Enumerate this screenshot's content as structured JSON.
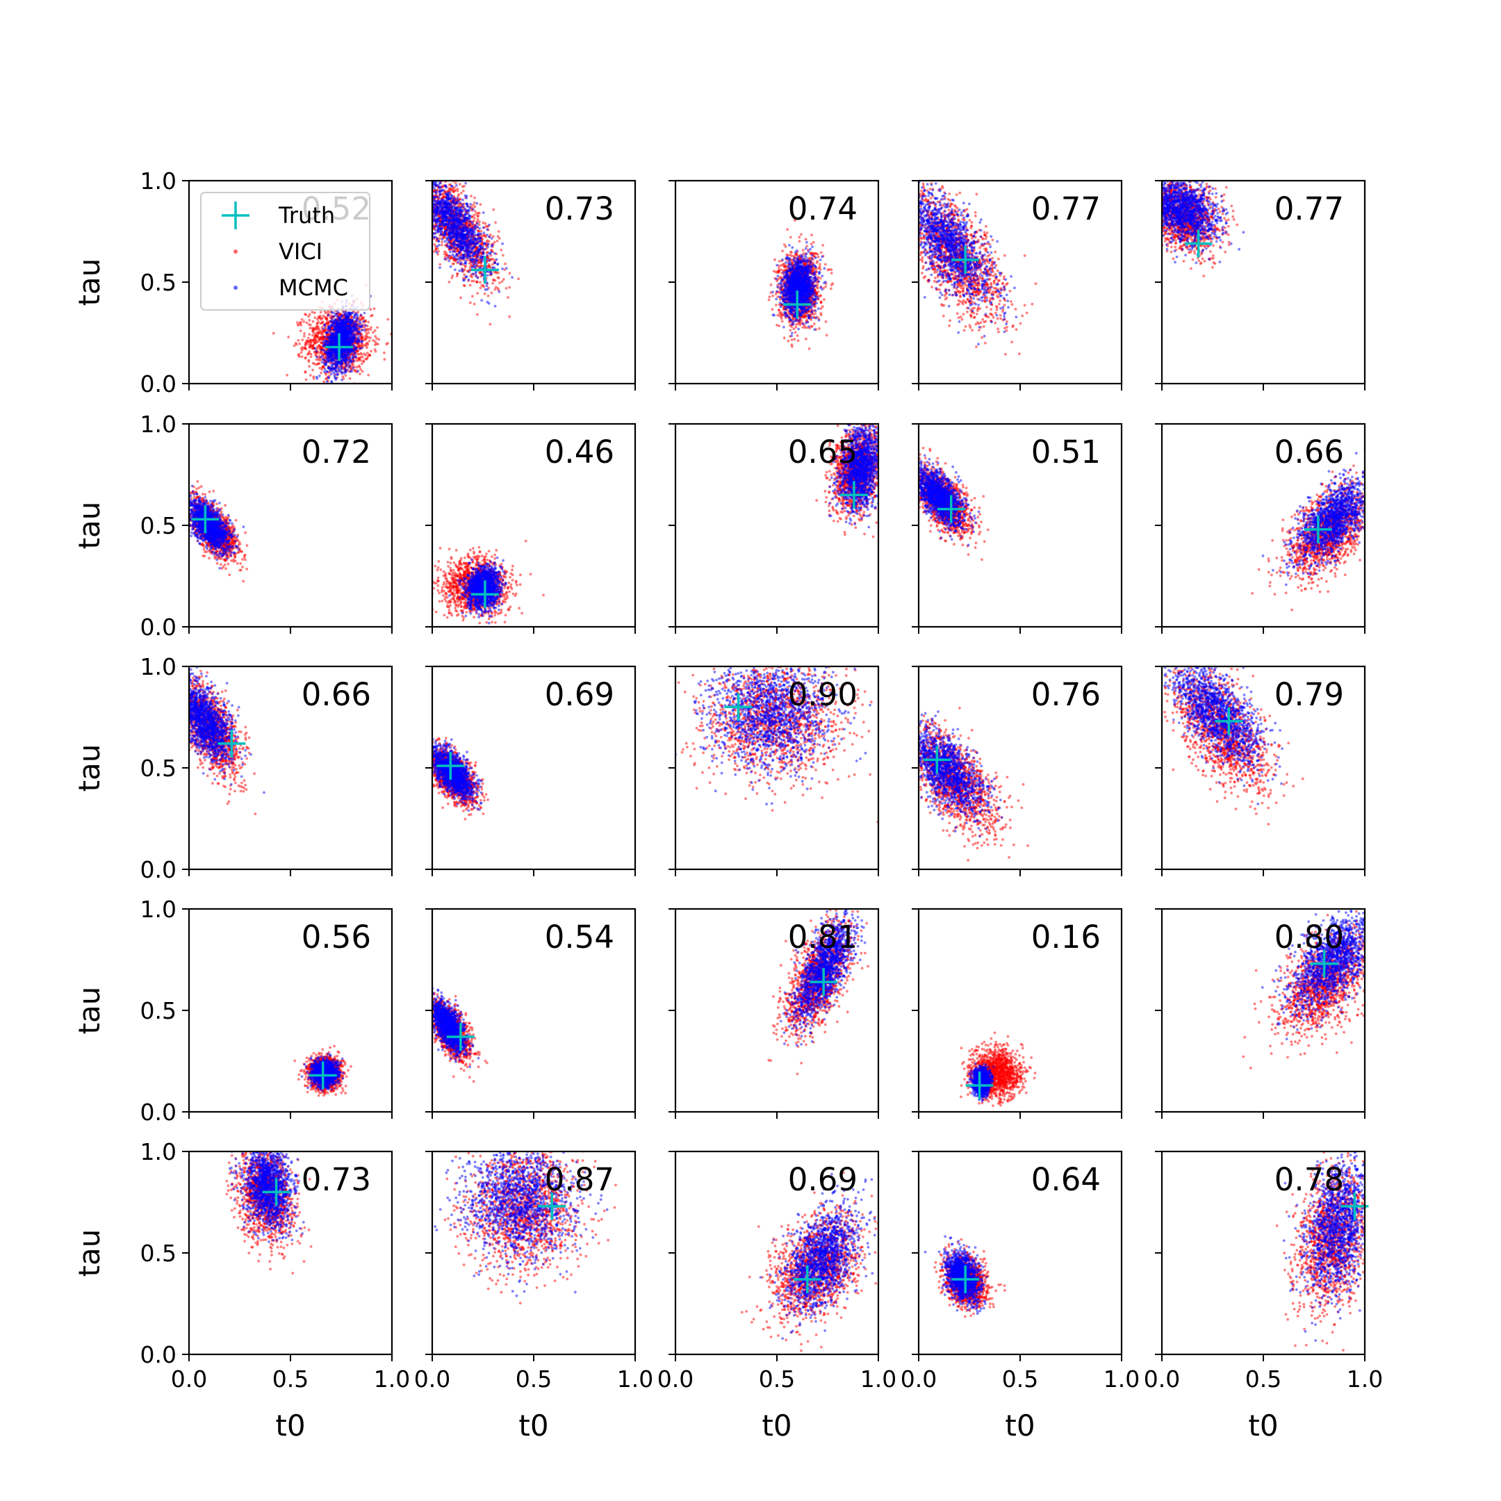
{
  "chart_data": {
    "type": "scatter",
    "grid": {
      "rows": 5,
      "cols": 5
    },
    "xlabel": "t0",
    "ylabel": "tau",
    "xlim": [
      0.0,
      1.0
    ],
    "ylim": [
      0.0,
      1.0
    ],
    "x_ticks": [
      "0.0",
      "0.5",
      "1.0"
    ],
    "y_ticks": [
      "0.0",
      "0.5",
      "1.0"
    ],
    "grid_lines": false,
    "legend": {
      "placement": "upper-left of first panel",
      "entries": [
        {
          "label": "Truth",
          "marker": "plus",
          "color": "#00bfbf"
        },
        {
          "label": "VICI",
          "marker": "dot",
          "color": "#ff0000"
        },
        {
          "label": "MCMC",
          "marker": "dot",
          "color": "#0000ff"
        }
      ]
    },
    "colors": {
      "vici": "#ff0000",
      "mcmc": "#0000ff",
      "truth": "#00bfbf"
    },
    "panels": [
      {
        "overlap": "0.52",
        "truth": [
          0.74,
          0.18
        ],
        "vici": {
          "center": [
            0.74,
            0.21
          ],
          "spread": [
            0.08,
            0.08
          ],
          "corr": 0.0
        },
        "mcmc": {
          "center": [
            0.75,
            0.21
          ],
          "spread": [
            0.04,
            0.07
          ],
          "corr": 0.3
        }
      },
      {
        "overlap": "0.73",
        "truth": [
          0.26,
          0.56
        ],
        "vici": {
          "center": [
            0.12,
            0.76
          ],
          "spread": [
            0.1,
            0.13
          ],
          "corr": -0.7
        },
        "mcmc": {
          "center": [
            0.1,
            0.79
          ],
          "spread": [
            0.09,
            0.12
          ],
          "corr": -0.75
        }
      },
      {
        "overlap": "0.74",
        "truth": [
          0.6,
          0.39
        ],
        "vici": {
          "center": [
            0.61,
            0.47
          ],
          "spread": [
            0.05,
            0.09
          ],
          "corr": 0.1
        },
        "mcmc": {
          "center": [
            0.61,
            0.47
          ],
          "spread": [
            0.04,
            0.07
          ],
          "corr": 0.1
        }
      },
      {
        "overlap": "0.77",
        "truth": [
          0.23,
          0.61
        ],
        "vici": {
          "center": [
            0.19,
            0.62
          ],
          "spread": [
            0.12,
            0.16
          ],
          "corr": -0.65
        },
        "mcmc": {
          "center": [
            0.15,
            0.69
          ],
          "spread": [
            0.11,
            0.14
          ],
          "corr": -0.7
        }
      },
      {
        "overlap": "0.77",
        "truth": [
          0.18,
          0.69
        ],
        "vici": {
          "center": [
            0.1,
            0.83
          ],
          "spread": [
            0.09,
            0.09
          ],
          "corr": -0.3
        },
        "mcmc": {
          "center": [
            0.1,
            0.85
          ],
          "spread": [
            0.09,
            0.08
          ],
          "corr": -0.3
        }
      },
      {
        "overlap": "0.72",
        "truth": [
          0.08,
          0.53
        ],
        "vici": {
          "center": [
            0.12,
            0.48
          ],
          "spread": [
            0.06,
            0.07
          ],
          "corr": -0.6
        },
        "mcmc": {
          "center": [
            0.1,
            0.5
          ],
          "spread": [
            0.05,
            0.06
          ],
          "corr": -0.6
        }
      },
      {
        "overlap": "0.46",
        "truth": [
          0.26,
          0.16
        ],
        "vici": {
          "center": [
            0.21,
            0.2
          ],
          "spread": [
            0.08,
            0.07
          ],
          "corr": 0.0
        },
        "mcmc": {
          "center": [
            0.25,
            0.19
          ],
          "spread": [
            0.04,
            0.05
          ],
          "corr": 0.1
        }
      },
      {
        "overlap": "0.65",
        "truth": [
          0.88,
          0.65
        ],
        "vici": {
          "center": [
            0.89,
            0.77
          ],
          "spread": [
            0.06,
            0.11
          ],
          "corr": 0.2
        },
        "mcmc": {
          "center": [
            0.91,
            0.78
          ],
          "spread": [
            0.05,
            0.1
          ],
          "corr": 0.2
        }
      },
      {
        "overlap": "0.51",
        "truth": [
          0.16,
          0.58
        ],
        "vici": {
          "center": [
            0.12,
            0.62
          ],
          "spread": [
            0.07,
            0.08
          ],
          "corr": -0.6
        },
        "mcmc": {
          "center": [
            0.1,
            0.64
          ],
          "spread": [
            0.06,
            0.07
          ],
          "corr": -0.6
        }
      },
      {
        "overlap": "0.66",
        "truth": [
          0.77,
          0.48
        ],
        "vici": {
          "center": [
            0.82,
            0.46
          ],
          "spread": [
            0.1,
            0.11
          ],
          "corr": 0.5
        },
        "mcmc": {
          "center": [
            0.85,
            0.53
          ],
          "spread": [
            0.09,
            0.1
          ],
          "corr": 0.6
        }
      },
      {
        "overlap": "0.66",
        "truth": [
          0.21,
          0.62
        ],
        "vici": {
          "center": [
            0.1,
            0.7
          ],
          "spread": [
            0.08,
            0.12
          ],
          "corr": -0.6
        },
        "mcmc": {
          "center": [
            0.08,
            0.73
          ],
          "spread": [
            0.07,
            0.1
          ],
          "corr": -0.6
        }
      },
      {
        "overlap": "0.69",
        "truth": [
          0.09,
          0.51
        ],
        "vici": {
          "center": [
            0.1,
            0.46
          ],
          "spread": [
            0.06,
            0.07
          ],
          "corr": -0.6
        },
        "mcmc": {
          "center": [
            0.1,
            0.48
          ],
          "spread": [
            0.05,
            0.06
          ],
          "corr": -0.6
        }
      },
      {
        "overlap": "0.90",
        "truth": [
          0.31,
          0.8
        ],
        "vici": {
          "center": [
            0.48,
            0.74
          ],
          "spread": [
            0.17,
            0.14
          ],
          "corr": 0.0
        },
        "mcmc": {
          "center": [
            0.47,
            0.76
          ],
          "spread": [
            0.15,
            0.13
          ],
          "corr": 0.0
        }
      },
      {
        "overlap": "0.76",
        "truth": [
          0.09,
          0.54
        ],
        "vici": {
          "center": [
            0.17,
            0.44
          ],
          "spread": [
            0.11,
            0.13
          ],
          "corr": -0.6
        },
        "mcmc": {
          "center": [
            0.13,
            0.49
          ],
          "spread": [
            0.1,
            0.11
          ],
          "corr": -0.65
        }
      },
      {
        "overlap": "0.79",
        "truth": [
          0.33,
          0.73
        ],
        "vici": {
          "center": [
            0.29,
            0.69
          ],
          "spread": [
            0.12,
            0.15
          ],
          "corr": -0.6
        },
        "mcmc": {
          "center": [
            0.27,
            0.77
          ],
          "spread": [
            0.11,
            0.13
          ],
          "corr": -0.65
        }
      },
      {
        "overlap": "0.56",
        "truth": [
          0.66,
          0.18
        ],
        "vici": {
          "center": [
            0.67,
            0.19
          ],
          "spread": [
            0.04,
            0.04
          ],
          "corr": 0.0
        },
        "mcmc": {
          "center": [
            0.67,
            0.19
          ],
          "spread": [
            0.03,
            0.03
          ],
          "corr": 0.0
        }
      },
      {
        "overlap": "0.54",
        "truth": [
          0.14,
          0.37
        ],
        "vici": {
          "center": [
            0.09,
            0.4
          ],
          "spread": [
            0.05,
            0.07
          ],
          "corr": -0.6
        },
        "mcmc": {
          "center": [
            0.08,
            0.42
          ],
          "spread": [
            0.04,
            0.06
          ],
          "corr": -0.6
        }
      },
      {
        "overlap": "0.81",
        "truth": [
          0.73,
          0.64
        ],
        "vici": {
          "center": [
            0.7,
            0.65
          ],
          "spread": [
            0.08,
            0.13
          ],
          "corr": 0.6
        },
        "mcmc": {
          "center": [
            0.73,
            0.7
          ],
          "spread": [
            0.07,
            0.12
          ],
          "corr": 0.65
        }
      },
      {
        "overlap": "0.16",
        "truth": [
          0.3,
          0.13
        ],
        "vici": {
          "center": [
            0.38,
            0.19
          ],
          "spread": [
            0.06,
            0.06
          ],
          "corr": 0.0
        },
        "mcmc": {
          "center": [
            0.31,
            0.15
          ],
          "spread": [
            0.02,
            0.03
          ],
          "corr": 0.0
        }
      },
      {
        "overlap": "0.80",
        "truth": [
          0.8,
          0.73
        ],
        "vici": {
          "center": [
            0.8,
            0.64
          ],
          "spread": [
            0.11,
            0.13
          ],
          "corr": 0.5
        },
        "mcmc": {
          "center": [
            0.84,
            0.74
          ],
          "spread": [
            0.1,
            0.12
          ],
          "corr": 0.55
        }
      },
      {
        "overlap": "0.73",
        "truth": [
          0.43,
          0.8
        ],
        "vici": {
          "center": [
            0.38,
            0.79
          ],
          "spread": [
            0.07,
            0.12
          ],
          "corr": -0.2
        },
        "mcmc": {
          "center": [
            0.39,
            0.83
          ],
          "spread": [
            0.06,
            0.11
          ],
          "corr": -0.2
        }
      },
      {
        "overlap": "0.87",
        "truth": [
          0.59,
          0.73
        ],
        "vici": {
          "center": [
            0.45,
            0.72
          ],
          "spread": [
            0.14,
            0.15
          ],
          "corr": 0.0
        },
        "mcmc": {
          "center": [
            0.43,
            0.76
          ],
          "spread": [
            0.13,
            0.14
          ],
          "corr": 0.0
        }
      },
      {
        "overlap": "0.69",
        "truth": [
          0.65,
          0.37
        ],
        "vici": {
          "center": [
            0.69,
            0.42
          ],
          "spread": [
            0.11,
            0.13
          ],
          "corr": 0.4
        },
        "mcmc": {
          "center": [
            0.72,
            0.47
          ],
          "spread": [
            0.09,
            0.12
          ],
          "corr": 0.45
        }
      },
      {
        "overlap": "0.64",
        "truth": [
          0.23,
          0.37
        ],
        "vici": {
          "center": [
            0.23,
            0.36
          ],
          "spread": [
            0.05,
            0.06
          ],
          "corr": -0.2
        },
        "mcmc": {
          "center": [
            0.22,
            0.38
          ],
          "spread": [
            0.04,
            0.06
          ],
          "corr": -0.3
        }
      },
      {
        "overlap": "0.78",
        "truth": [
          0.95,
          0.73
        ],
        "vici": {
          "center": [
            0.84,
            0.57
          ],
          "spread": [
            0.09,
            0.17
          ],
          "corr": 0.3
        },
        "mcmc": {
          "center": [
            0.87,
            0.63
          ],
          "spread": [
            0.08,
            0.16
          ],
          "corr": 0.3
        }
      }
    ]
  }
}
